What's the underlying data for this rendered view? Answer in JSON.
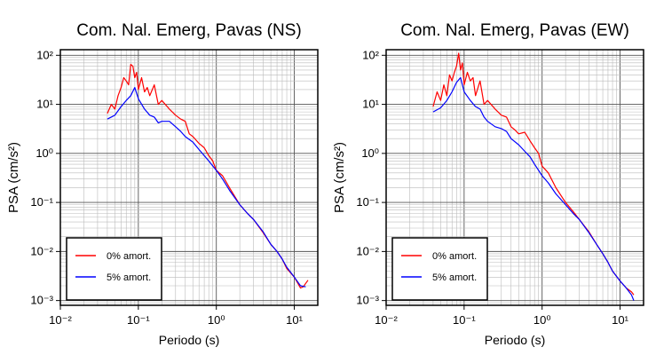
{
  "chart_data": [
    {
      "type": "line",
      "title": "Com. Nal. Emerg, Pavas (NS)",
      "xlabel": "Periodo (s)",
      "ylabel": "PSA (cm/s²)",
      "xscale": "log",
      "yscale": "log",
      "xlim": [
        0.01,
        20
      ],
      "ylim": [
        0.0008,
        130
      ],
      "x_ticks": [
        "10⁻²",
        "10⁻¹",
        "10⁰",
        "10¹"
      ],
      "y_ticks": [
        "10⁻³",
        "10⁻²",
        "10⁻¹",
        "10⁰",
        "10¹",
        "10²"
      ],
      "grid": true,
      "legend_position": "bottom-left",
      "series": [
        {
          "name": "0% amort.",
          "color": "#ff0000",
          "x": [
            0.04,
            0.045,
            0.05,
            0.055,
            0.06,
            0.065,
            0.07,
            0.075,
            0.08,
            0.085,
            0.09,
            0.095,
            0.1,
            0.11,
            0.12,
            0.13,
            0.14,
            0.16,
            0.18,
            0.2,
            0.25,
            0.3,
            0.35,
            0.4,
            0.45,
            0.5,
            0.6,
            0.7,
            0.8,
            0.9,
            1.0,
            1.2,
            1.5,
            2.0,
            2.5,
            3.0,
            4.0,
            5.0,
            6.0,
            7.0,
            8.0,
            10.0,
            12.0,
            13.0,
            15.0
          ],
          "y": [
            6.5,
            10,
            8,
            15,
            22,
            35,
            30,
            25,
            65,
            60,
            35,
            45,
            20,
            35,
            18,
            22,
            15,
            25,
            10,
            12,
            8,
            6,
            5,
            4.5,
            2.5,
            2.2,
            1.6,
            1.3,
            0.9,
            0.7,
            0.45,
            0.35,
            0.19,
            0.09,
            0.06,
            0.045,
            0.024,
            0.014,
            0.01,
            0.007,
            0.0045,
            0.003,
            0.0018,
            0.0019,
            0.0026
          ]
        },
        {
          "name": "5% amort.",
          "color": "#0000ff",
          "x": [
            0.04,
            0.05,
            0.06,
            0.07,
            0.08,
            0.09,
            0.1,
            0.12,
            0.14,
            0.16,
            0.18,
            0.2,
            0.25,
            0.3,
            0.35,
            0.4,
            0.5,
            0.6,
            0.7,
            0.8,
            1.0,
            1.2,
            1.5,
            2.0,
            2.5,
            3.0,
            4.0,
            5.0,
            6.0,
            7.0,
            8.0,
            10.0,
            12.0,
            14.0
          ],
          "y": [
            5,
            6,
            9,
            12,
            15,
            22,
            13,
            8,
            6,
            5.5,
            4.2,
            4.5,
            4.5,
            3.5,
            2.8,
            2.2,
            1.7,
            1.2,
            0.9,
            0.7,
            0.45,
            0.3,
            0.17,
            0.09,
            0.06,
            0.045,
            0.025,
            0.014,
            0.01,
            0.007,
            0.0048,
            0.003,
            0.002,
            0.0019
          ]
        }
      ]
    },
    {
      "type": "line",
      "title": "Com. Nal. Emerg, Pavas (EW)",
      "xlabel": "Periodo (s)",
      "ylabel": "PSA (cm/s²)",
      "xscale": "log",
      "yscale": "log",
      "xlim": [
        0.01,
        20
      ],
      "ylim": [
        0.0008,
        130
      ],
      "x_ticks": [
        "10⁻²",
        "10⁻¹",
        "10⁰",
        "10¹"
      ],
      "y_ticks": [
        "10⁻³",
        "10⁻²",
        "10⁻¹",
        "10⁰",
        "10¹",
        "10²"
      ],
      "grid": true,
      "legend_position": "bottom-left",
      "series": [
        {
          "name": "0% amort.",
          "color": "#ff0000",
          "x": [
            0.04,
            0.045,
            0.05,
            0.055,
            0.06,
            0.065,
            0.07,
            0.075,
            0.08,
            0.085,
            0.09,
            0.095,
            0.1,
            0.11,
            0.12,
            0.13,
            0.14,
            0.16,
            0.18,
            0.2,
            0.25,
            0.3,
            0.35,
            0.4,
            0.45,
            0.5,
            0.6,
            0.7,
            0.8,
            0.9,
            1.0,
            1.2,
            1.5,
            2.0,
            2.5,
            3.0,
            4.0,
            5.0,
            6.0,
            7.0,
            8.0,
            10.0,
            12.0,
            14.0,
            15.0
          ],
          "y": [
            9,
            18,
            12,
            25,
            15,
            40,
            30,
            45,
            60,
            110,
            50,
            70,
            25,
            45,
            30,
            35,
            15,
            30,
            10,
            12,
            8,
            6,
            5.5,
            3.5,
            3,
            2.5,
            2.7,
            1.8,
            1.3,
            1.0,
            0.55,
            0.4,
            0.2,
            0.1,
            0.065,
            0.045,
            0.025,
            0.014,
            0.009,
            0.006,
            0.004,
            0.0025,
            0.0018,
            0.0015,
            0.0013
          ]
        },
        {
          "name": "5% amort.",
          "color": "#0000ff",
          "x": [
            0.04,
            0.05,
            0.06,
            0.07,
            0.08,
            0.09,
            0.1,
            0.12,
            0.14,
            0.16,
            0.18,
            0.2,
            0.25,
            0.3,
            0.35,
            0.4,
            0.5,
            0.6,
            0.7,
            0.8,
            1.0,
            1.2,
            1.5,
            2.0,
            2.5,
            3.0,
            4.0,
            5.0,
            6.0,
            7.0,
            8.0,
            10.0,
            12.0,
            14.0,
            15.0
          ],
          "y": [
            7,
            8.5,
            12,
            18,
            28,
            35,
            18,
            12,
            9,
            8,
            5.5,
            4.5,
            3.5,
            3.2,
            2.8,
            2.0,
            1.5,
            1.1,
            0.85,
            0.6,
            0.35,
            0.25,
            0.15,
            0.09,
            0.06,
            0.045,
            0.024,
            0.014,
            0.009,
            0.006,
            0.004,
            0.0025,
            0.0018,
            0.0013,
            0.001
          ]
        }
      ]
    }
  ]
}
